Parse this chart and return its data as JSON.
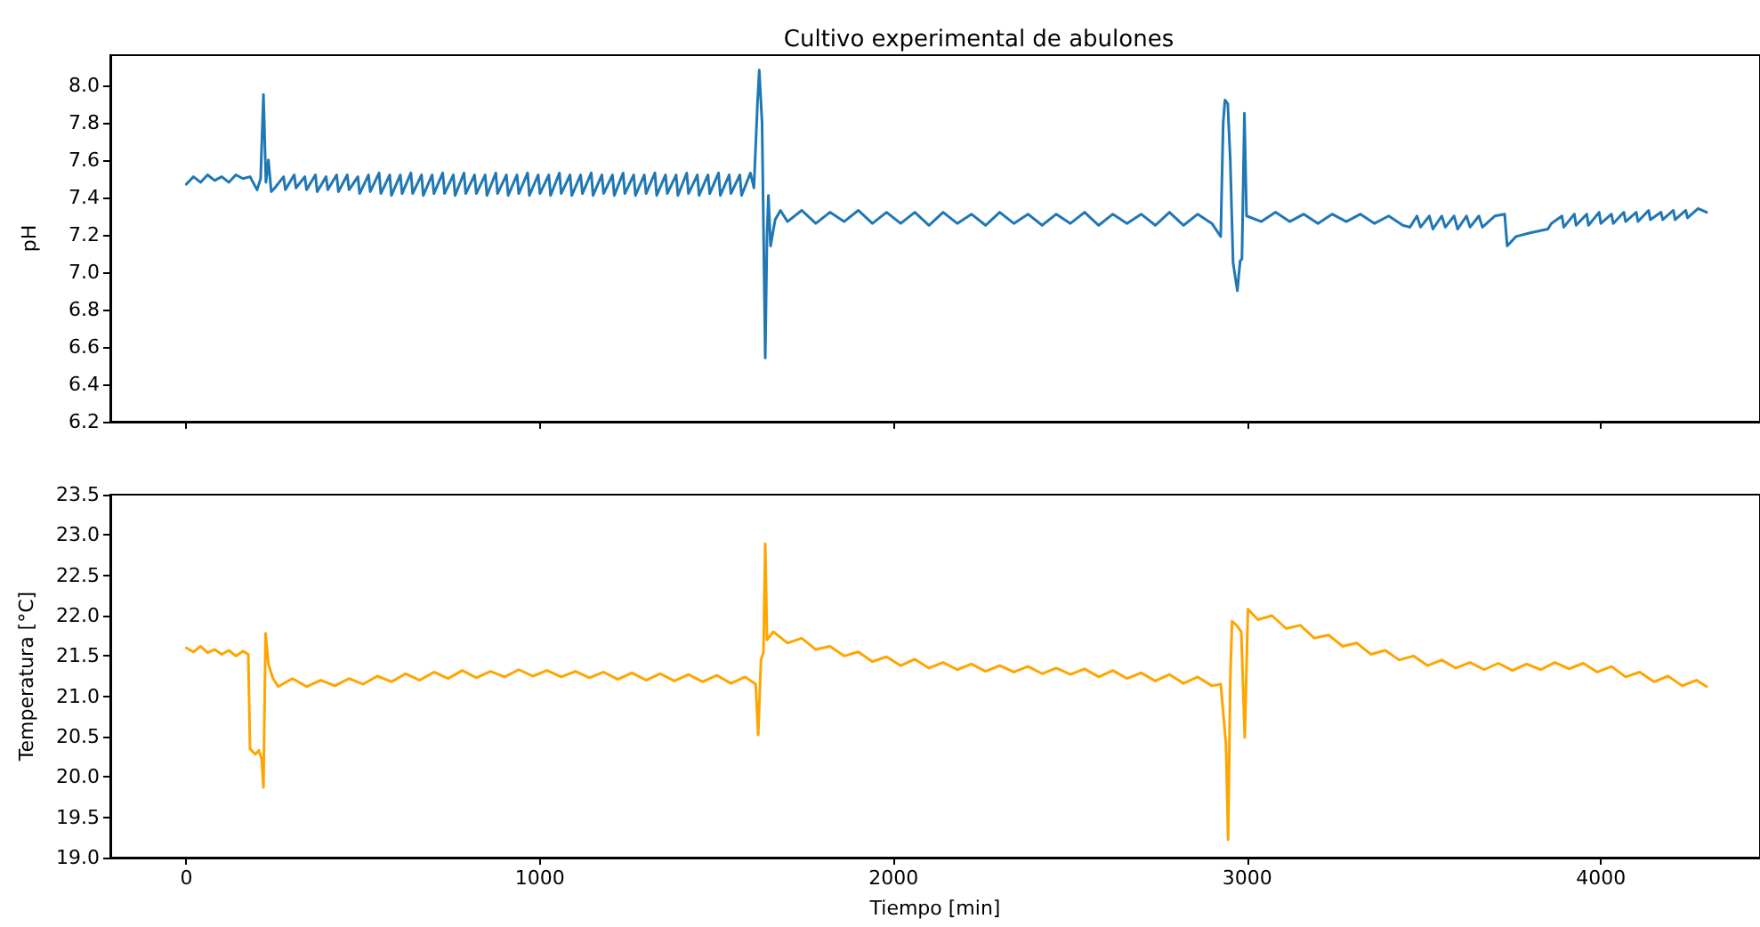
{
  "chart_data": [
    {
      "type": "line",
      "title": "Cultivo experimental de abulones",
      "ylabel": "pH",
      "tick_labels": "y",
      "xlim": [
        -215,
        4450
      ],
      "xticks": [
        0,
        1000,
        2000,
        3000,
        4000
      ],
      "ylim": [
        6.2,
        8.16
      ],
      "yticks": [
        6.2,
        6.4,
        6.6,
        6.8,
        {
          "value": 7,
          "label": "7.0"
        },
        7.2,
        7.4,
        7.6,
        7.8,
        {
          "value": 8,
          "label": "8.0"
        }
      ],
      "series": [
        {
          "color": "#1f77b4",
          "x": [
            0,
            20,
            40,
            60,
            80,
            100,
            120,
            140,
            160,
            180,
            200,
            210,
            218,
            225,
            232,
            240,
            250,
            275,
            280,
            305,
            310,
            335,
            340,
            365,
            370,
            395,
            400,
            425,
            430,
            455,
            460,
            485,
            490,
            515,
            520,
            545,
            550,
            575,
            580,
            605,
            610,
            635,
            640,
            665,
            670,
            695,
            700,
            725,
            730,
            755,
            760,
            785,
            790,
            815,
            820,
            845,
            850,
            875,
            880,
            905,
            910,
            935,
            940,
            965,
            970,
            995,
            1000,
            1025,
            1030,
            1055,
            1060,
            1085,
            1090,
            1115,
            1120,
            1145,
            1150,
            1175,
            1180,
            1205,
            1210,
            1235,
            1240,
            1265,
            1270,
            1295,
            1300,
            1325,
            1330,
            1355,
            1360,
            1385,
            1390,
            1415,
            1420,
            1445,
            1450,
            1475,
            1480,
            1505,
            1510,
            1535,
            1540,
            1565,
            1570,
            1595,
            1605,
            1615,
            1620,
            1628,
            1637,
            1642,
            1646,
            1652,
            1665,
            1680,
            1700,
            1740,
            1780,
            1820,
            1860,
            1900,
            1940,
            1980,
            2020,
            2060,
            2100,
            2140,
            2180,
            2220,
            2260,
            2300,
            2340,
            2380,
            2420,
            2460,
            2500,
            2540,
            2580,
            2620,
            2660,
            2700,
            2740,
            2780,
            2820,
            2860,
            2900,
            2925,
            2932,
            2937,
            2945,
            2952,
            2960,
            2972,
            2980,
            2985,
            2992,
            2998,
            3040,
            3080,
            3120,
            3160,
            3200,
            3240,
            3280,
            3320,
            3360,
            3400,
            3440,
            3460,
            3480,
            3490,
            3515,
            3525,
            3550,
            3560,
            3585,
            3595,
            3620,
            3630,
            3655,
            3665,
            3700,
            3728,
            3735,
            3760,
            3800,
            3850,
            3860,
            3890,
            3895,
            3925,
            3930,
            3960,
            3965,
            3995,
            4000,
            4030,
            4035,
            4065,
            4070,
            4100,
            4105,
            4135,
            4140,
            4170,
            4175,
            4205,
            4210,
            4240,
            4245,
            4275,
            4299
          ],
          "values": [
            7.47,
            7.51,
            7.48,
            7.52,
            7.49,
            7.51,
            7.48,
            7.52,
            7.5,
            7.51,
            7.44,
            7.5,
            7.95,
            7.48,
            7.6,
            7.43,
            7.45,
            7.51,
            7.44,
            7.52,
            7.45,
            7.51,
            7.44,
            7.52,
            7.43,
            7.51,
            7.44,
            7.52,
            7.43,
            7.52,
            7.44,
            7.51,
            7.42,
            7.52,
            7.43,
            7.53,
            7.42,
            7.52,
            7.41,
            7.52,
            7.42,
            7.53,
            7.42,
            7.52,
            7.41,
            7.52,
            7.42,
            7.53,
            7.42,
            7.52,
            7.41,
            7.53,
            7.42,
            7.52,
            7.42,
            7.52,
            7.41,
            7.53,
            7.42,
            7.52,
            7.41,
            7.52,
            7.42,
            7.53,
            7.41,
            7.52,
            7.42,
            7.52,
            7.41,
            7.53,
            7.42,
            7.52,
            7.41,
            7.52,
            7.42,
            7.53,
            7.41,
            7.52,
            7.42,
            7.52,
            7.41,
            7.53,
            7.42,
            7.52,
            7.41,
            7.52,
            7.42,
            7.53,
            7.41,
            7.52,
            7.42,
            7.52,
            7.41,
            7.53,
            7.42,
            7.52,
            7.41,
            7.52,
            7.42,
            7.53,
            7.41,
            7.52,
            7.42,
            7.52,
            7.41,
            7.53,
            7.45,
            7.9,
            8.08,
            7.8,
            6.54,
            7.2,
            7.41,
            7.14,
            7.28,
            7.33,
            7.27,
            7.33,
            7.26,
            7.32,
            7.27,
            7.33,
            7.26,
            7.32,
            7.26,
            7.32,
            7.25,
            7.32,
            7.26,
            7.31,
            7.25,
            7.32,
            7.26,
            7.31,
            7.25,
            7.31,
            7.26,
            7.32,
            7.25,
            7.31,
            7.26,
            7.31,
            7.25,
            7.32,
            7.25,
            7.31,
            7.26,
            7.19,
            7.8,
            7.92,
            7.9,
            7.6,
            7.05,
            6.9,
            7.06,
            7.07,
            7.85,
            7.3,
            7.27,
            7.32,
            7.27,
            7.31,
            7.26,
            7.31,
            7.27,
            7.31,
            7.26,
            7.3,
            7.25,
            7.24,
            7.3,
            7.24,
            7.3,
            7.23,
            7.3,
            7.24,
            7.3,
            7.23,
            7.3,
            7.24,
            7.3,
            7.24,
            7.3,
            7.31,
            7.14,
            7.19,
            7.21,
            7.23,
            7.26,
            7.3,
            7.24,
            7.31,
            7.25,
            7.31,
            7.25,
            7.32,
            7.26,
            7.31,
            7.26,
            7.32,
            7.27,
            7.32,
            7.27,
            7.33,
            7.28,
            7.32,
            7.28,
            7.33,
            7.28,
            7.33,
            7.29,
            7.34,
            7.32
          ]
        }
      ]
    },
    {
      "type": "line",
      "xlabel": "Tiempo [min]",
      "ylabel": "Temperatura [°C]",
      "xlim": [
        -215,
        4450
      ],
      "xticks": [
        0,
        1000,
        2000,
        3000,
        4000
      ],
      "ylim": [
        19.0,
        23.5
      ],
      "yticks": [
        {
          "value": 19,
          "label": "19.0"
        },
        19.5,
        {
          "value": 20,
          "label": "20.0"
        },
        20.5,
        {
          "value": 21,
          "label": "21.0"
        },
        21.5,
        {
          "value": 22,
          "label": "22.0"
        },
        22.5,
        {
          "value": 23,
          "label": "23.0"
        },
        23.5
      ],
      "series": [
        {
          "color": "#ffa500",
          "x": [
            0,
            20,
            40,
            60,
            80,
            100,
            120,
            140,
            160,
            175,
            180,
            195,
            205,
            213,
            218,
            224,
            232,
            245,
            260,
            300,
            340,
            380,
            420,
            460,
            500,
            540,
            580,
            620,
            660,
            700,
            740,
            780,
            820,
            860,
            900,
            940,
            980,
            1020,
            1060,
            1100,
            1140,
            1180,
            1220,
            1260,
            1300,
            1340,
            1380,
            1420,
            1460,
            1500,
            1540,
            1580,
            1610,
            1617,
            1625,
            1632,
            1637,
            1642,
            1660,
            1700,
            1740,
            1780,
            1820,
            1860,
            1900,
            1940,
            1980,
            2020,
            2060,
            2100,
            2140,
            2180,
            2220,
            2260,
            2300,
            2340,
            2380,
            2420,
            2460,
            2500,
            2540,
            2580,
            2620,
            2660,
            2700,
            2740,
            2780,
            2820,
            2860,
            2900,
            2925,
            2940,
            2946,
            2952,
            2957,
            2970,
            2983,
            2993,
            3002,
            3030,
            3070,
            3110,
            3150,
            3190,
            3230,
            3270,
            3310,
            3350,
            3390,
            3430,
            3470,
            3510,
            3550,
            3590,
            3630,
            3670,
            3710,
            3750,
            3790,
            3830,
            3870,
            3910,
            3950,
            3990,
            4030,
            4070,
            4110,
            4150,
            4190,
            4230,
            4270,
            4299
          ],
          "values": [
            21.6,
            21.55,
            21.62,
            21.54,
            21.58,
            21.52,
            21.57,
            21.5,
            21.56,
            21.52,
            20.35,
            20.28,
            20.33,
            20.22,
            19.87,
            21.78,
            21.4,
            21.22,
            21.12,
            21.22,
            21.12,
            21.2,
            21.13,
            21.22,
            21.15,
            21.25,
            21.18,
            21.28,
            21.2,
            21.3,
            21.22,
            21.32,
            21.23,
            21.31,
            21.24,
            21.33,
            21.25,
            21.32,
            21.24,
            21.31,
            21.23,
            21.3,
            21.21,
            21.29,
            21.2,
            21.28,
            21.19,
            21.27,
            21.18,
            21.26,
            21.16,
            21.24,
            21.15,
            20.52,
            21.45,
            21.55,
            22.89,
            21.7,
            21.8,
            21.66,
            21.72,
            21.58,
            21.62,
            21.5,
            21.55,
            21.43,
            21.49,
            21.38,
            21.46,
            21.35,
            21.42,
            21.33,
            21.4,
            21.31,
            21.38,
            21.3,
            21.37,
            21.28,
            21.35,
            21.27,
            21.34,
            21.24,
            21.32,
            21.22,
            21.29,
            21.19,
            21.27,
            21.16,
            21.24,
            21.13,
            21.15,
            20.4,
            19.22,
            21.2,
            21.93,
            21.88,
            21.8,
            20.49,
            22.08,
            21.95,
            22.0,
            21.84,
            21.88,
            21.72,
            21.76,
            21.62,
            21.66,
            21.52,
            21.57,
            21.45,
            21.5,
            21.38,
            21.45,
            21.35,
            21.42,
            21.33,
            21.41,
            21.32,
            21.4,
            21.33,
            21.42,
            21.34,
            21.41,
            21.3,
            21.37,
            21.24,
            21.3,
            21.18,
            21.25,
            21.13,
            21.2,
            21.12
          ]
        }
      ]
    }
  ]
}
